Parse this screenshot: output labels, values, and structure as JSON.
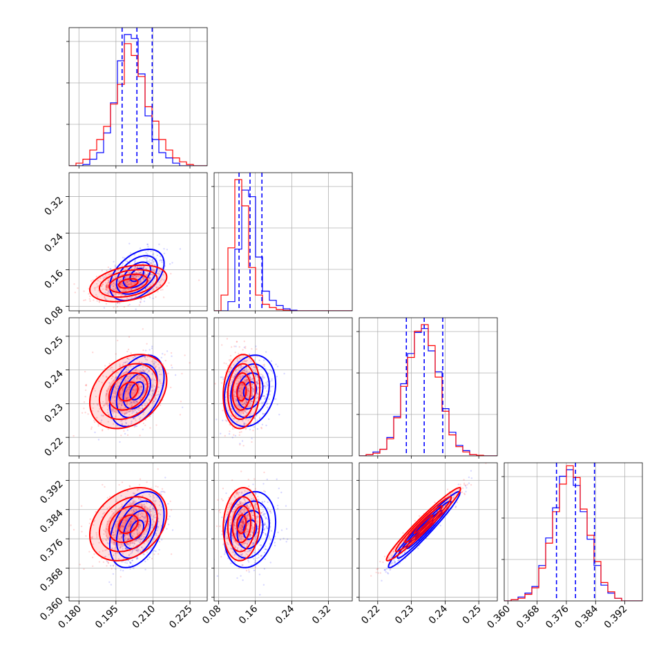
{
  "chart_data": {
    "type": "corner",
    "grid": true,
    "series": [
      {
        "color": "#0000ff"
      },
      {
        "color": "#ff0000"
      }
    ],
    "parameters": [
      {
        "range": [
          0.176,
          0.232
        ],
        "ticks": [
          0.18,
          0.195,
          0.21,
          0.225
        ],
        "tick_labels": [
          "0.180",
          "0.195",
          "0.210",
          "0.225"
        ],
        "quantiles": [
          0.1975,
          0.2035,
          0.2097
        ]
      },
      {
        "range": [
          0.07,
          0.372
        ],
        "ticks": [
          0.08,
          0.16,
          0.24,
          0.32
        ],
        "tick_labels": [
          "0.08",
          "0.16",
          "0.24",
          "0.32"
        ],
        "quantiles": [
          0.1245,
          0.1485,
          0.1745
        ]
      },
      {
        "range": [
          0.2145,
          0.2555
        ],
        "ticks": [
          0.22,
          0.23,
          0.24,
          0.25
        ],
        "tick_labels": [
          "0.22",
          "0.23",
          "0.24",
          "0.25"
        ],
        "quantiles": [
          0.2285,
          0.2338,
          0.2393
        ]
      },
      {
        "range": [
          0.359,
          0.3968
        ],
        "ticks": [
          0.36,
          0.368,
          0.376,
          0.384,
          0.392
        ],
        "tick_labels": [
          "0.360",
          "0.368",
          "0.376",
          "0.384",
          "0.392"
        ],
        "quantiles": [
          0.3733,
          0.3785,
          0.3837
        ]
      }
    ],
    "histograms": [
      {
        "bin_edges": [
          0.176,
          0.1788,
          0.1816,
          0.1844,
          0.1872,
          0.19,
          0.1928,
          0.1956,
          0.1984,
          0.2012,
          0.204,
          0.2068,
          0.2096,
          0.2124,
          0.2152,
          0.218,
          0.2208,
          0.2236,
          0.2264,
          0.2292,
          0.232
        ],
        "counts": [
          [
            0.0,
            0.0,
            0.01,
            0.05,
            0.1,
            0.25,
            0.48,
            0.8,
            1.0,
            0.97,
            0.7,
            0.38,
            0.2,
            0.1,
            0.06,
            0.02,
            0.0,
            0.0,
            0.0,
            0.0
          ],
          [
            0.0,
            0.02,
            0.05,
            0.12,
            0.2,
            0.3,
            0.47,
            0.62,
            0.93,
            0.84,
            0.68,
            0.45,
            0.34,
            0.2,
            0.12,
            0.06,
            0.03,
            0.01,
            0.0,
            0.0
          ]
        ]
      },
      {
        "bin_edges": [
          0.07,
          0.0851,
          0.1002,
          0.1153,
          0.1304,
          0.1455,
          0.1606,
          0.1757,
          0.1908,
          0.2059,
          0.221,
          0.2361,
          0.2512,
          0.2663,
          0.2814,
          0.2965,
          0.3116,
          0.3267,
          0.3418,
          0.3569,
          0.372
        ],
        "counts": [
          [
            0.0,
            0.0,
            0.07,
            0.47,
            0.92,
            0.87,
            0.41,
            0.15,
            0.08,
            0.04,
            0.015,
            0.005,
            0.0,
            0.0,
            0.0,
            0.0,
            0.0,
            0.0,
            0.0,
            0.0
          ],
          [
            0.0,
            0.12,
            0.48,
            1.0,
            0.8,
            0.33,
            0.12,
            0.05,
            0.025,
            0.01,
            0.004,
            0.0,
            0.0,
            0.0,
            0.0,
            0.0,
            0.0,
            0.0,
            0.0,
            0.0
          ]
        ]
      },
      {
        "bin_edges": [
          0.2145,
          0.21655,
          0.2186,
          0.22065,
          0.2227,
          0.22475,
          0.2268,
          0.22885,
          0.2309,
          0.23295,
          0.235,
          0.23705,
          0.2391,
          0.24115,
          0.2432,
          0.24525,
          0.2473,
          0.24935,
          0.2514,
          0.25345,
          0.2555
        ],
        "counts": [
          [
            0.0,
            0.01,
            0.03,
            0.05,
            0.14,
            0.3,
            0.55,
            0.78,
            0.94,
            0.97,
            0.8,
            0.64,
            0.36,
            0.18,
            0.08,
            0.04,
            0.01,
            0.005,
            0.0,
            0.0
          ],
          [
            0.0,
            0.01,
            0.02,
            0.05,
            0.13,
            0.29,
            0.53,
            0.75,
            0.95,
            1.0,
            0.84,
            0.6,
            0.34,
            0.16,
            0.07,
            0.03,
            0.01,
            0.005,
            0.0,
            0.0
          ]
        ]
      },
      {
        "bin_edges": [
          0.359,
          0.36089,
          0.36278,
          0.36467,
          0.36656,
          0.36845,
          0.37034,
          0.37223,
          0.37412,
          0.37601,
          0.3779,
          0.37979,
          0.38168,
          0.38357,
          0.38546,
          0.38735,
          0.38924,
          0.39113,
          0.39302,
          0.39491,
          0.3968
        ],
        "counts": [
          [
            0.0,
            0.01,
            0.03,
            0.06,
            0.11,
            0.27,
            0.48,
            0.71,
            0.95,
            1.0,
            0.88,
            0.68,
            0.47,
            0.27,
            0.12,
            0.06,
            0.02,
            0.0,
            0.0,
            0.0
          ],
          [
            0.0,
            0.01,
            0.02,
            0.05,
            0.1,
            0.25,
            0.44,
            0.68,
            0.89,
            1.03,
            0.94,
            0.7,
            0.5,
            0.3,
            0.14,
            0.07,
            0.02,
            0.0,
            0.0,
            0.0
          ]
        ]
      }
    ],
    "pairs": [
      {
        "x": 0,
        "y": 1,
        "dists": [
          {
            "mean": [
              0.2035,
              0.1485
            ],
            "sd": [
              0.0055,
              0.028
            ],
            "rho": 0.45
          },
          {
            "mean": [
              0.2,
              0.13
            ],
            "sd": [
              0.0078,
              0.02
            ],
            "rho": 0.35
          }
        ]
      },
      {
        "x": 0,
        "y": 2,
        "dists": [
          {
            "mean": [
              0.2035,
              0.2338
            ],
            "sd": [
              0.0055,
              0.0053
            ],
            "rho": 0.4
          },
          {
            "mean": [
              0.2,
              0.2336
            ],
            "sd": [
              0.0078,
              0.0055
            ],
            "rho": 0.3
          }
        ]
      },
      {
        "x": 0,
        "y": 3,
        "dists": [
          {
            "mean": [
              0.2035,
              0.3785
            ],
            "sd": [
              0.0055,
              0.0052
            ],
            "rho": 0.4
          },
          {
            "mean": [
              0.2,
              0.38
            ],
            "sd": [
              0.0078,
              0.005
            ],
            "rho": 0.3
          }
        ]
      },
      {
        "x": 1,
        "y": 2,
        "dists": [
          {
            "mean": [
              0.1485,
              0.2338
            ],
            "sd": [
              0.028,
              0.0053
            ],
            "rho": 0.2
          },
          {
            "mean": [
              0.13,
              0.2336
            ],
            "sd": [
              0.02,
              0.0055
            ],
            "rho": 0.1
          }
        ]
      },
      {
        "x": 1,
        "y": 3,
        "dists": [
          {
            "mean": [
              0.1485,
              0.3785
            ],
            "sd": [
              0.028,
              0.0052
            ],
            "rho": 0.2
          },
          {
            "mean": [
              0.13,
              0.38
            ],
            "sd": [
              0.02,
              0.005
            ],
            "rho": 0.1
          }
        ]
      },
      {
        "x": 2,
        "y": 3,
        "dists": [
          {
            "mean": [
              0.2338,
              0.3785
            ],
            "sd": [
              0.0053,
              0.0052
            ],
            "rho": 0.97
          },
          {
            "mean": [
              0.2336,
              0.38
            ],
            "sd": [
              0.0055,
              0.005
            ],
            "rho": 0.97
          }
        ]
      }
    ]
  }
}
